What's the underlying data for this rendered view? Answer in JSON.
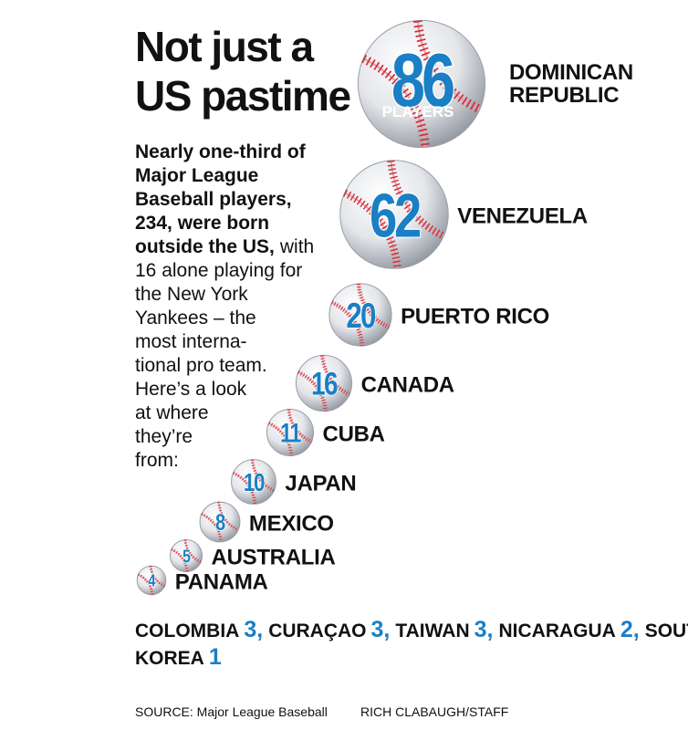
{
  "chart_data": {
    "type": "bubble",
    "title": "Not just a US pastime",
    "description_bold": [
      "Nearly one-third of",
      "Major League",
      "Baseball players,",
      "234, were born",
      "outside the US,"
    ],
    "description": [
      "with",
      "16 alone playing for",
      "the New York",
      "Yankees – the",
      "most interna-",
      "tional pro team.",
      "Here’s a look",
      "at where",
      "they’re",
      "from:"
    ],
    "unit_label": "PLAYERS",
    "categories": [
      "DOMINICAN REPUBLIC",
      "VENEZUELA",
      "PUERTO RICO",
      "CANADA",
      "CUBA",
      "JAPAN",
      "MEXICO",
      "AUSTRALIA",
      "PANAMA"
    ],
    "values": [
      86,
      62,
      20,
      16,
      11,
      10,
      8,
      5,
      4
    ],
    "color": "#1a7fc4",
    "others": {
      "names": [
        "COLOMBIA",
        "CURAÇAO",
        "TAIWAN",
        "NICARAGUA",
        "SOUTH KOREA"
      ],
      "values": [
        3,
        3,
        3,
        2,
        1
      ],
      "value_labels": [
        "3,",
        "3,",
        "3,",
        "2,",
        "1"
      ]
    },
    "source": "SOURCE: Major League Baseball",
    "credit": "RICH CLABAUGH/STAFF"
  }
}
